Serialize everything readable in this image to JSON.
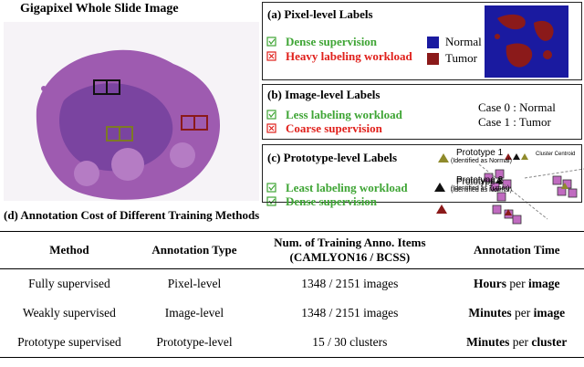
{
  "left_panel": {
    "title": "Gigapixel Whole Slide Image"
  },
  "panel_a": {
    "title": "(a) Pixel-level Labels",
    "pro": "Dense supervision",
    "con": "Heavy labeling workload",
    "legend": [
      "Normal",
      "Tumor"
    ]
  },
  "panel_b": {
    "title": "(b) Image-level Labels",
    "pro": "Less labeling workload",
    "con": "Coarse supervision",
    "cases": [
      "Case 0 : Normal",
      "Case 1 : Tumor"
    ]
  },
  "panel_c": {
    "title": "(c) Prototype-level Labels",
    "pros": [
      "Least labeling workload",
      "Dense supervision"
    ],
    "prototypes": [
      {
        "name": "Prototype 1",
        "note": "(Identified as Normal)"
      },
      {
        "name": "Prototype 2",
        "note": "(Identified as Tumor)"
      },
      {
        "name": "Prototype 3",
        "note": "(Identified as Normal)"
      }
    ],
    "centroid": "Cluster Centroid"
  },
  "section_d": {
    "title": "(d) Annotation Cost of Different Training Methods",
    "header": [
      "Method",
      "Annotation Type",
      [
        "Num. of Training Anno. Items",
        "(CAMLYON16 / BCSS)"
      ],
      "Annotation Time"
    ],
    "rows": [
      {
        "method": "Fully supervised",
        "type": "Pixel-level",
        "items": "1348 / 2151 images",
        "time": {
          "parts": [
            "Hours",
            "per",
            "image"
          ],
          "bold": [
            true,
            false,
            true
          ]
        }
      },
      {
        "method": "Weakly supervised",
        "type": "Image-level",
        "items": "1348 / 2151 images",
        "time": {
          "parts": [
            "Minutes",
            "per",
            "image"
          ],
          "bold": [
            true,
            false,
            true
          ]
        }
      },
      {
        "method": "Prototype supervised",
        "type": "Prototype-level",
        "items": "15 / 30 clusters",
        "time": {
          "parts": [
            "Minutes",
            "per",
            "cluster"
          ],
          "bold": [
            true,
            false,
            true
          ]
        }
      }
    ]
  }
}
